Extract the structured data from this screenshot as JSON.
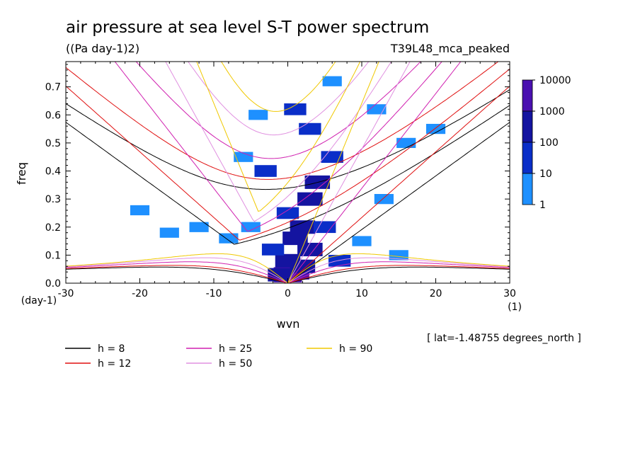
{
  "chart_data": {
    "type": "heatmap",
    "title": "air pressure at sea level S-T power spectrum",
    "units": "((Pa day-1)2)",
    "experiment": "T39L48_mca_peaked",
    "xlabel": "wvn",
    "ylabel": "freq",
    "x_unit": "(1)",
    "y_unit": "(day-1)",
    "xlim": [
      -30,
      30
    ],
    "ylim": [
      0,
      0.79
    ],
    "xticks": [
      "-30",
      "-20",
      "-10",
      "0",
      "10",
      "20",
      "30"
    ],
    "yticks": [
      "0.0",
      "0.1",
      "0.2",
      "0.3",
      "0.4",
      "0.5",
      "0.6",
      "0.7"
    ],
    "annotation": "[ lat=-1.48755 degrees_north ]",
    "colorbar": {
      "levels": [
        "1",
        "10",
        "100",
        "1000",
        "10000"
      ],
      "colors": [
        "#00f0f0",
        "#1e90ff",
        "#0a2ec8",
        "#1414a0",
        "#4a10b0"
      ]
    },
    "spectrum_cells": [
      {
        "x": 0,
        "y": 0.03,
        "level": 4
      },
      {
        "x": 1,
        "y": 0.04,
        "level": 4
      },
      {
        "x": -1,
        "y": 0.03,
        "level": 3
      },
      {
        "x": 0,
        "y": 0.08,
        "level": 3
      },
      {
        "x": 2,
        "y": 0.06,
        "level": 3
      },
      {
        "x": 3,
        "y": 0.12,
        "level": 3
      },
      {
        "x": 2,
        "y": 0.2,
        "level": 3
      },
      {
        "x": 3,
        "y": 0.3,
        "level": 3
      },
      {
        "x": 4,
        "y": 0.36,
        "level": 3
      },
      {
        "x": 1,
        "y": 0.16,
        "level": 3
      },
      {
        "x": 0,
        "y": 0.25,
        "level": 2
      },
      {
        "x": -2,
        "y": 0.12,
        "level": 2
      },
      {
        "x": 5,
        "y": 0.2,
        "level": 2
      },
      {
        "x": 6,
        "y": 0.45,
        "level": 2
      },
      {
        "x": 3,
        "y": 0.55,
        "level": 2
      },
      {
        "x": -3,
        "y": 0.4,
        "level": 2
      },
      {
        "x": 7,
        "y": 0.08,
        "level": 2
      },
      {
        "x": 1,
        "y": 0.62,
        "level": 2
      },
      {
        "x": -5,
        "y": 0.2,
        "level": 1
      },
      {
        "x": -8,
        "y": 0.16,
        "level": 1
      },
      {
        "x": -12,
        "y": 0.2,
        "level": 1
      },
      {
        "x": -16,
        "y": 0.18,
        "level": 1
      },
      {
        "x": 10,
        "y": 0.15,
        "level": 1
      },
      {
        "x": 13,
        "y": 0.3,
        "level": 1
      },
      {
        "x": 16,
        "y": 0.5,
        "level": 1
      },
      {
        "x": 20,
        "y": 0.55,
        "level": 1
      },
      {
        "x": 12,
        "y": 0.62,
        "level": 1
      },
      {
        "x": 6,
        "y": 0.72,
        "level": 1
      },
      {
        "x": -4,
        "y": 0.6,
        "level": 1
      },
      {
        "x": -6,
        "y": 0.45,
        "level": 1
      },
      {
        "x": -20,
        "y": 0.26,
        "level": 1
      },
      {
        "x": 15,
        "y": 0.1,
        "level": 1
      }
    ],
    "series": [
      {
        "name": "h = 8",
        "h": 8,
        "color": "#000000"
      },
      {
        "name": "h = 12",
        "h": 12,
        "color": "#e01010"
      },
      {
        "name": "h = 25",
        "h": 25,
        "color": "#d020b0"
      },
      {
        "name": "h = 50",
        "h": 50,
        "color": "#e090e0"
      },
      {
        "name": "h = 90",
        "h": 90,
        "color": "#f0c800"
      }
    ]
  }
}
